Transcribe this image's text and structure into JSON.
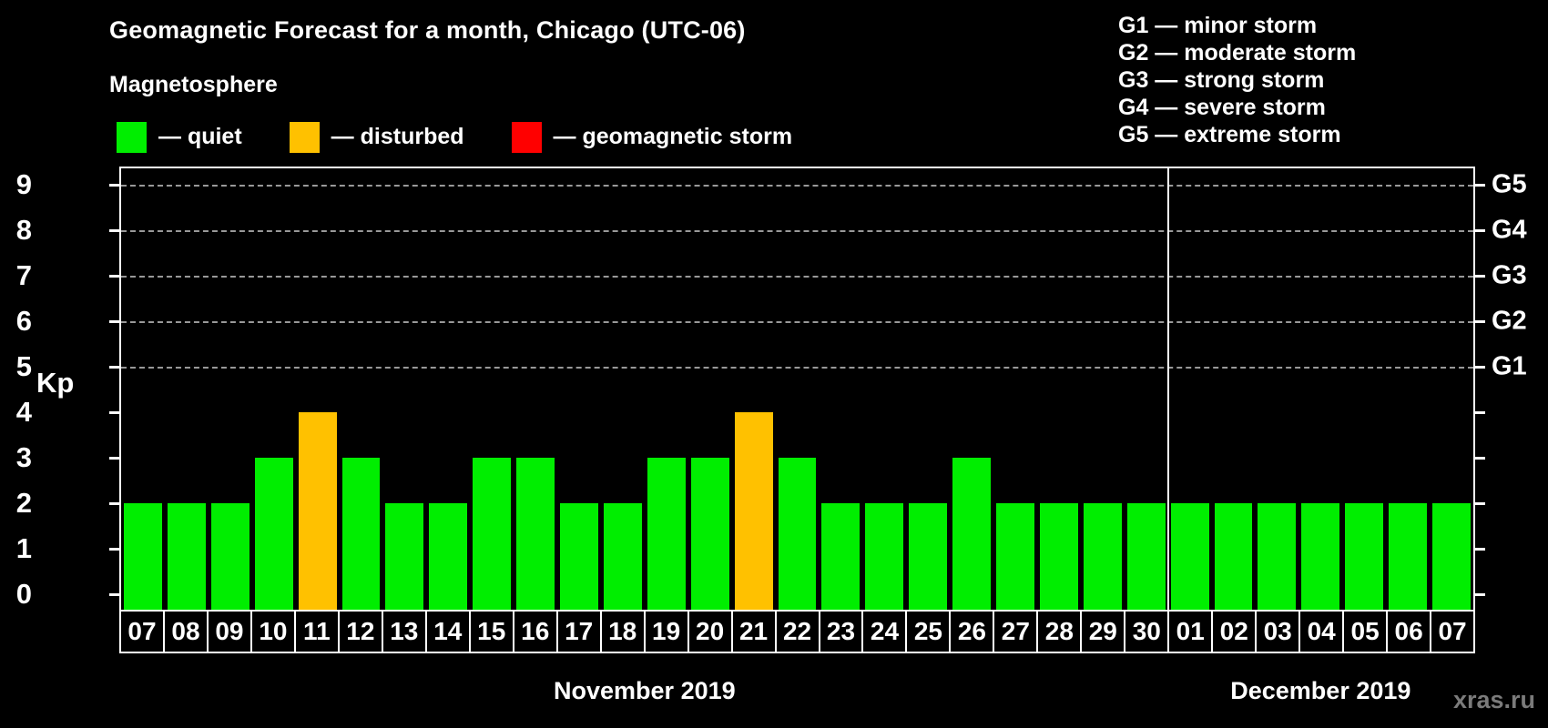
{
  "header": {
    "title": "Geomagnetic Forecast for a month, Chicago (UTC-06)",
    "subtitle": "Magnetosphere"
  },
  "legend": {
    "items": [
      {
        "name": "quiet",
        "label": "— quiet",
        "color": "#00EE00"
      },
      {
        "name": "disturbed",
        "label": "— disturbed",
        "color": "#FFC100"
      },
      {
        "name": "storm",
        "label": "— geomagnetic storm",
        "color": "#FF0000"
      }
    ]
  },
  "g_legend": {
    "items": [
      "G1 — minor storm",
      "G2 — moderate storm",
      "G3 — strong storm",
      "G4 — severe storm",
      "G5 — extreme storm"
    ]
  },
  "watermark": "xras.ru",
  "chart_data": {
    "type": "bar",
    "title": "Geomagnetic Forecast for a month, Chicago (UTC-06)",
    "ylabel": "Kp",
    "ylim": [
      0,
      9.35
    ],
    "yticks": [
      0,
      1,
      2,
      3,
      4,
      5,
      6,
      7,
      8,
      9
    ],
    "dashed_gridlines": [
      5,
      6,
      7,
      8,
      9
    ],
    "grid": "horizontal dashed lines at Kp 5-9 only",
    "legend_position": "top-left above plot",
    "right_axis_labels": [
      {
        "kp": 5,
        "label": "G1"
      },
      {
        "kp": 6,
        "label": "G2"
      },
      {
        "kp": 7,
        "label": "G3"
      },
      {
        "kp": 8,
        "label": "G4"
      },
      {
        "kp": 9,
        "label": "G5"
      }
    ],
    "status_colors": {
      "quiet": "#00EE00",
      "disturbed": "#FFC100",
      "storm": "#FF0000"
    },
    "month_sections": [
      {
        "label": "November 2019",
        "start": 0,
        "count": 24
      },
      {
        "label": "December 2019",
        "start": 24,
        "count": 7
      }
    ],
    "bars": [
      {
        "day": "07",
        "kp": 2,
        "status": "quiet"
      },
      {
        "day": "08",
        "kp": 2,
        "status": "quiet"
      },
      {
        "day": "09",
        "kp": 2,
        "status": "quiet"
      },
      {
        "day": "10",
        "kp": 3,
        "status": "quiet"
      },
      {
        "day": "11",
        "kp": 4,
        "status": "disturbed"
      },
      {
        "day": "12",
        "kp": 3,
        "status": "quiet"
      },
      {
        "day": "13",
        "kp": 2,
        "status": "quiet"
      },
      {
        "day": "14",
        "kp": 2,
        "status": "quiet"
      },
      {
        "day": "15",
        "kp": 3,
        "status": "quiet"
      },
      {
        "day": "16",
        "kp": 3,
        "status": "quiet"
      },
      {
        "day": "17",
        "kp": 2,
        "status": "quiet"
      },
      {
        "day": "18",
        "kp": 2,
        "status": "quiet"
      },
      {
        "day": "19",
        "kp": 3,
        "status": "quiet"
      },
      {
        "day": "20",
        "kp": 3,
        "status": "quiet"
      },
      {
        "day": "21",
        "kp": 4,
        "status": "disturbed"
      },
      {
        "day": "22",
        "kp": 3,
        "status": "quiet"
      },
      {
        "day": "23",
        "kp": 2,
        "status": "quiet"
      },
      {
        "day": "24",
        "kp": 2,
        "status": "quiet"
      },
      {
        "day": "25",
        "kp": 2,
        "status": "quiet"
      },
      {
        "day": "26",
        "kp": 3,
        "status": "quiet"
      },
      {
        "day": "27",
        "kp": 2,
        "status": "quiet"
      },
      {
        "day": "28",
        "kp": 2,
        "status": "quiet"
      },
      {
        "day": "29",
        "kp": 2,
        "status": "quiet"
      },
      {
        "day": "30",
        "kp": 2,
        "status": "quiet"
      },
      {
        "day": "01",
        "kp": 2,
        "status": "quiet"
      },
      {
        "day": "02",
        "kp": 2,
        "status": "quiet"
      },
      {
        "day": "03",
        "kp": 2,
        "status": "quiet"
      },
      {
        "day": "04",
        "kp": 2,
        "status": "quiet"
      },
      {
        "day": "05",
        "kp": 2,
        "status": "quiet"
      },
      {
        "day": "06",
        "kp": 2,
        "status": "quiet"
      },
      {
        "day": "07",
        "kp": 2,
        "status": "quiet"
      }
    ]
  }
}
